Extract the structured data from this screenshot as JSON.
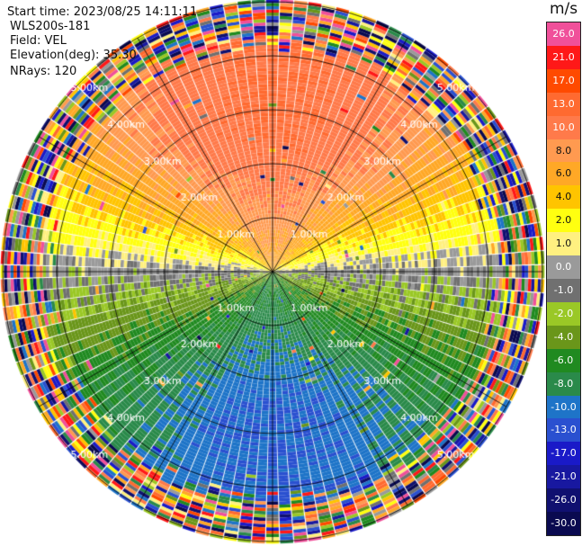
{
  "info": {
    "start_time": "Start time: 2023/08/25 14:11:11",
    "instrument": "WLS200s-181",
    "field": "Field: VEL",
    "elevation": "Elevation(deg): 35.30",
    "nrays": "NRays: 120"
  },
  "colorbar": {
    "unit": "m/s",
    "labels": [
      "26.0",
      "21.0",
      "17.0",
      "13.0",
      "10.0",
      "8.0",
      "6.0",
      "4.0",
      "2.0",
      "1.0",
      "0.0",
      "-1.0",
      "-2.0",
      "-4.0",
      "-6.0",
      "-8.0",
      "-10.0",
      "-13.0",
      "-17.0",
      "-21.0",
      "-26.0",
      "-30.0"
    ],
    "colors": [
      "#f0509a",
      "#ff1818",
      "#ff4a00",
      "#ff6a30",
      "#ff7a4a",
      "#ff9a50",
      "#ffa826",
      "#ffc400",
      "#ffff10",
      "#fff080",
      "#9a9a9a",
      "#707070",
      "#9ac826",
      "#6a961a",
      "#208a20",
      "#2a8a4a",
      "#1e74c8",
      "#2a50d0",
      "#1a1ac8",
      "#1818a0",
      "#101070",
      "#0a0a50"
    ]
  },
  "chart_data": {
    "type": "heatmap",
    "projection": "polar (PPI)",
    "field": "VEL",
    "units": "m/s",
    "n_rays": 120,
    "elevation_deg": 35.3,
    "range_rings_km": [
      1.0,
      2.0,
      3.0,
      4.0,
      5.0
    ],
    "range_ring_labels": [
      "1.00km",
      "2.00km",
      "3.00km",
      "4.00km",
      "5.00km"
    ],
    "max_range_km": 5.0,
    "radial_lines_deg": [
      0,
      30,
      60,
      90,
      120,
      150,
      180,
      210,
      240,
      270,
      300,
      330
    ],
    "color_limits": [
      -30,
      26
    ],
    "velocity_pattern": {
      "north_sector_ms": 13,
      "south_sector_ms": -10,
      "east_west_axis_ms": 0,
      "noise_beyond_km": 4.2
    }
  }
}
